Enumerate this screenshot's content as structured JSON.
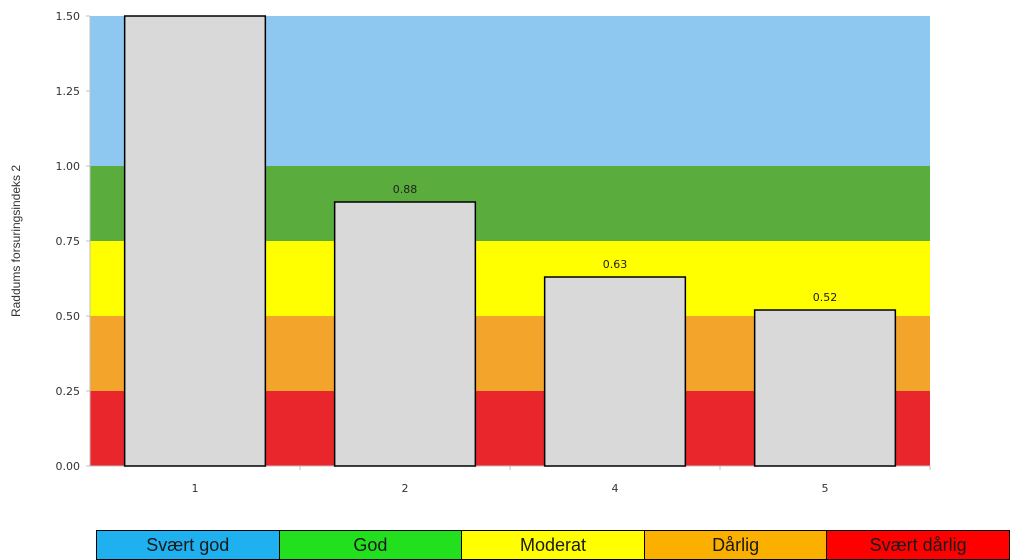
{
  "chart_data": {
    "type": "bar",
    "categories": [
      "1",
      "2",
      "4",
      "5"
    ],
    "values": [
      1.5,
      0.88,
      0.63,
      0.52
    ],
    "data_labels": [
      "",
      "0.88",
      "0.63",
      "0.52"
    ],
    "title": "",
    "xlabel": "",
    "ylabel": "Raddums forsuringsindeks 2",
    "ylim": [
      0,
      1.5
    ],
    "yticks": [
      "0.00",
      "0.25",
      "0.50",
      "0.75",
      "1.00",
      "1.25",
      "1.50"
    ],
    "bar_color": "#d9d9d9",
    "bands": [
      {
        "label": "Svært god",
        "from": 1.0,
        "to": 1.5,
        "color": "#8ec8f0"
      },
      {
        "label": "God",
        "from": 0.75,
        "to": 1.0,
        "color": "#5aad3c"
      },
      {
        "label": "Moderat",
        "from": 0.5,
        "to": 0.75,
        "color": "#ffff00"
      },
      {
        "label": "Dårlig",
        "from": 0.25,
        "to": 0.5,
        "color": "#f3a42a"
      },
      {
        "label": "Svært dårlig",
        "from": 0.0,
        "to": 0.25,
        "color": "#e8262b"
      }
    ],
    "grid": false,
    "legend_position": "bottom"
  },
  "legend": {
    "items": [
      {
        "label": "Svært god",
        "color": "#1fb0f0"
      },
      {
        "label": "God",
        "color": "#22e01e"
      },
      {
        "label": "Moderat",
        "color": "#ffff00"
      },
      {
        "label": "Dårlig",
        "color": "#fbb000"
      },
      {
        "label": "Svært dårlig",
        "color": "#ff0000"
      }
    ]
  }
}
